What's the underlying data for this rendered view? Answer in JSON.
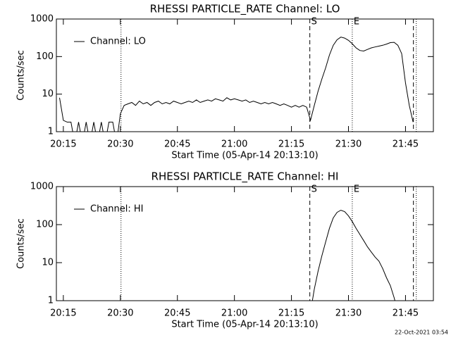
{
  "chart_data": [
    {
      "type": "line",
      "title": "RHESSI PARTICLE_RATE Channel: LO",
      "x_label": "Start Time (05-Apr-14 20:13:10)",
      "y_label": "Counts/sec",
      "log_y": true,
      "legend": "upper left",
      "xlim": [
        "20:13:10",
        "21:52:20"
      ],
      "ylim": [
        1,
        1000
      ],
      "xticks": [
        "20:15",
        "20:30",
        "20:45",
        "21:00",
        "21:15",
        "21:30",
        "21:45"
      ],
      "yticks": [
        1,
        10,
        100,
        1000
      ],
      "events": [
        {
          "time": "20:30:10",
          "style": "dotted"
        },
        {
          "time": "21:19:50",
          "style": "dashed",
          "label": "S"
        },
        {
          "time": "21:31:00",
          "style": "dotted",
          "label": "E"
        },
        {
          "time": "21:47:05",
          "style": "dashed"
        },
        {
          "time": "21:47:50",
          "style": "dotted"
        }
      ],
      "series": [
        {
          "name": "Channel: LO",
          "color": "#000000",
          "x": [
            "20:14",
            "20:15",
            "20:16",
            "20:17",
            "20:18",
            "20:19",
            "20:20",
            "20:21",
            "20:22",
            "20:23",
            "20:24",
            "20:25",
            "20:26",
            "20:27",
            "20:28",
            "20:29",
            "20:30",
            "20:31",
            "20:32",
            "20:33",
            "20:34",
            "20:35",
            "20:36",
            "20:37",
            "20:38",
            "20:39",
            "20:40",
            "20:41",
            "20:42",
            "20:43",
            "20:44",
            "20:45",
            "20:46",
            "20:47",
            "20:48",
            "20:49",
            "20:50",
            "20:51",
            "20:52",
            "20:53",
            "20:54",
            "20:55",
            "20:56",
            "20:57",
            "20:58",
            "20:59",
            "21:00",
            "21:01",
            "21:02",
            "21:03",
            "21:04",
            "21:05",
            "21:06",
            "21:07",
            "21:08",
            "21:09",
            "21:10",
            "21:11",
            "21:12",
            "21:13",
            "21:14",
            "21:15",
            "21:16",
            "21:17",
            "21:18",
            "21:19",
            "21:20",
            "21:21",
            "21:22",
            "21:23",
            "21:24",
            "21:25",
            "21:26",
            "21:27",
            "21:28",
            "21:29",
            "21:30",
            "21:31",
            "21:32",
            "21:33",
            "21:34",
            "21:35",
            "21:36",
            "21:37",
            "21:38",
            "21:39",
            "21:40",
            "21:41",
            "21:42",
            "21:43",
            "21:44",
            "21:45",
            "21:46",
            "21:47"
          ],
          "values": [
            8,
            2,
            1.8,
            1.8,
            0.5,
            1.8,
            0.5,
            1.8,
            0.5,
            1.8,
            0.5,
            1.8,
            0.5,
            1.8,
            1.8,
            0.5,
            3,
            5,
            5.5,
            6,
            5,
            6.5,
            5.5,
            6,
            5,
            6,
            6.5,
            5.5,
            6,
            5.5,
            6.5,
            6,
            5.5,
            6,
            6.5,
            6,
            7,
            6,
            6.5,
            7,
            6.5,
            7.5,
            7,
            6.5,
            8,
            7,
            7.5,
            7,
            6.5,
            7,
            6,
            6.5,
            6,
            5.5,
            6,
            5.5,
            6,
            5.5,
            5,
            5.5,
            5,
            4.5,
            5,
            4.5,
            5,
            4.5,
            2,
            5,
            12,
            25,
            50,
            110,
            200,
            280,
            330,
            310,
            270,
            220,
            170,
            145,
            140,
            155,
            170,
            180,
            190,
            200,
            215,
            235,
            240,
            200,
            120,
            20,
            5,
            1.8
          ]
        }
      ]
    },
    {
      "type": "line",
      "title": "RHESSI PARTICLE_RATE Channel: HI",
      "x_label": "Start Time (05-Apr-14 20:13:10)",
      "y_label": "Counts/sec",
      "log_y": true,
      "legend": "upper left",
      "xlim": [
        "20:13:10",
        "21:52:20"
      ],
      "ylim": [
        1,
        1000
      ],
      "xticks": [
        "20:15",
        "20:30",
        "20:45",
        "21:00",
        "21:15",
        "21:30",
        "21:45"
      ],
      "yticks": [
        1,
        10,
        100,
        1000
      ],
      "events": [
        {
          "time": "20:30:10",
          "style": "dotted"
        },
        {
          "time": "21:19:50",
          "style": "dashed",
          "label": "S"
        },
        {
          "time": "21:31:00",
          "style": "dotted",
          "label": "E"
        },
        {
          "time": "21:47:05",
          "style": "dashed"
        },
        {
          "time": "21:47:50",
          "style": "dotted"
        }
      ],
      "series": [
        {
          "name": "Channel: HI",
          "color": "#000000",
          "x": [
            "21:20",
            "21:21",
            "21:22",
            "21:23",
            "21:24",
            "21:25",
            "21:26",
            "21:27",
            "21:28",
            "21:29",
            "21:30",
            "21:31",
            "21:32",
            "21:33",
            "21:34",
            "21:35",
            "21:36",
            "21:37",
            "21:38",
            "21:39",
            "21:40",
            "21:41",
            "21:42",
            "21:43"
          ],
          "values": [
            0.5,
            2,
            6,
            15,
            35,
            80,
            150,
            210,
            240,
            220,
            170,
            120,
            80,
            55,
            38,
            26,
            19,
            14,
            11,
            7,
            4,
            2.5,
            1.2,
            0.5
          ]
        }
      ]
    }
  ],
  "footer": "22-Oct-2021 03:54"
}
